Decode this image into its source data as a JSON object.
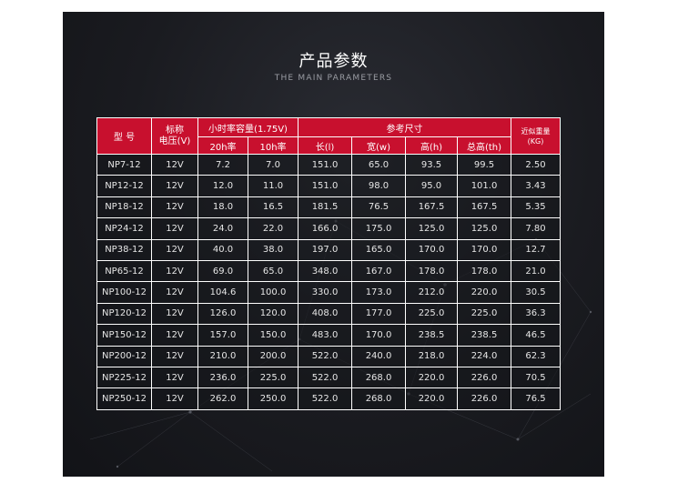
{
  "title": "产品参数",
  "subtitle": "THE MAIN PARAMETERS",
  "table": {
    "header": {
      "model": "型 号",
      "voltage_line1": "标称",
      "voltage_line2": "电压(V)",
      "capacity": "小时率容量(1.75V)",
      "capacity_20h": "20h率",
      "capacity_10h": "10h率",
      "dimensions": "参考尺寸",
      "length": "长(l)",
      "width": "宽(w)",
      "height": "高(h)",
      "total_height": "总高(th)",
      "weight_line1": "近似重量",
      "weight_line2": "(KG)"
    },
    "rows": [
      [
        "NP7-12",
        "12V",
        "7.2",
        "7.0",
        "151.0",
        "65.0",
        "93.5",
        "99.5",
        "2.50"
      ],
      [
        "NP12-12",
        "12V",
        "12.0",
        "11.0",
        "151.0",
        "98.0",
        "95.0",
        "101.0",
        "3.43"
      ],
      [
        "NP18-12",
        "12V",
        "18.0",
        "16.5",
        "181.5",
        "76.5",
        "167.5",
        "167.5",
        "5.35"
      ],
      [
        "NP24-12",
        "12V",
        "24.0",
        "22.0",
        "166.0",
        "175.0",
        "125.0",
        "125.0",
        "7.80"
      ],
      [
        "NP38-12",
        "12V",
        "40.0",
        "38.0",
        "197.0",
        "165.0",
        "170.0",
        "170.0",
        "12.7"
      ],
      [
        "NP65-12",
        "12V",
        "69.0",
        "65.0",
        "348.0",
        "167.0",
        "178.0",
        "178.0",
        "21.0"
      ],
      [
        "NP100-12",
        "12V",
        "104.6",
        "100.0",
        "330.0",
        "173.0",
        "212.0",
        "220.0",
        "30.5"
      ],
      [
        "NP120-12",
        "12V",
        "126.0",
        "120.0",
        "408.0",
        "177.0",
        "225.0",
        "225.0",
        "36.3"
      ],
      [
        "NP150-12",
        "12V",
        "157.0",
        "150.0",
        "483.0",
        "170.0",
        "238.5",
        "238.5",
        "46.5"
      ],
      [
        "NP200-12",
        "12V",
        "210.0",
        "200.0",
        "522.0",
        "240.0",
        "218.0",
        "224.0",
        "62.3"
      ],
      [
        "NP225-12",
        "12V",
        "236.0",
        "225.0",
        "522.0",
        "268.0",
        "220.0",
        "226.0",
        "70.5"
      ],
      [
        "NP250-12",
        "12V",
        "262.0",
        "250.0",
        "522.0",
        "268.0",
        "220.0",
        "226.0",
        "76.5"
      ]
    ]
  },
  "colors": {
    "header_red": "#c8102e",
    "background": "#1a1b20",
    "border": "#ffffff"
  }
}
